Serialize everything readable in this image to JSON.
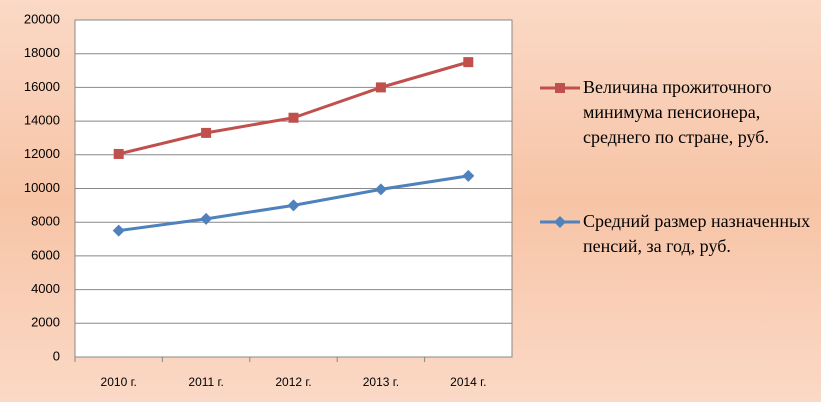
{
  "chart_data": {
    "type": "line",
    "categories": [
      "2010 г.",
      "2011 г.",
      "2012 г.",
      "2013 г.",
      "2014 г."
    ],
    "series": [
      {
        "name": "Величина прожиточного минимума пенсионера, среднего по стране, руб.",
        "color": "#c0504d",
        "marker": "square",
        "values": [
          12050,
          13300,
          14200,
          16000,
          17500
        ]
      },
      {
        "name": "Средний размер назначенных пенсий, за год, руб.",
        "color": "#4f81bd",
        "marker": "diamond",
        "values": [
          7500,
          8200,
          9000,
          9950,
          10750
        ]
      }
    ],
    "ylim": [
      0,
      20000
    ],
    "yticks": [
      0,
      2000,
      4000,
      6000,
      8000,
      10000,
      12000,
      14000,
      16000,
      18000,
      20000
    ],
    "grid": true,
    "legend": "right"
  }
}
